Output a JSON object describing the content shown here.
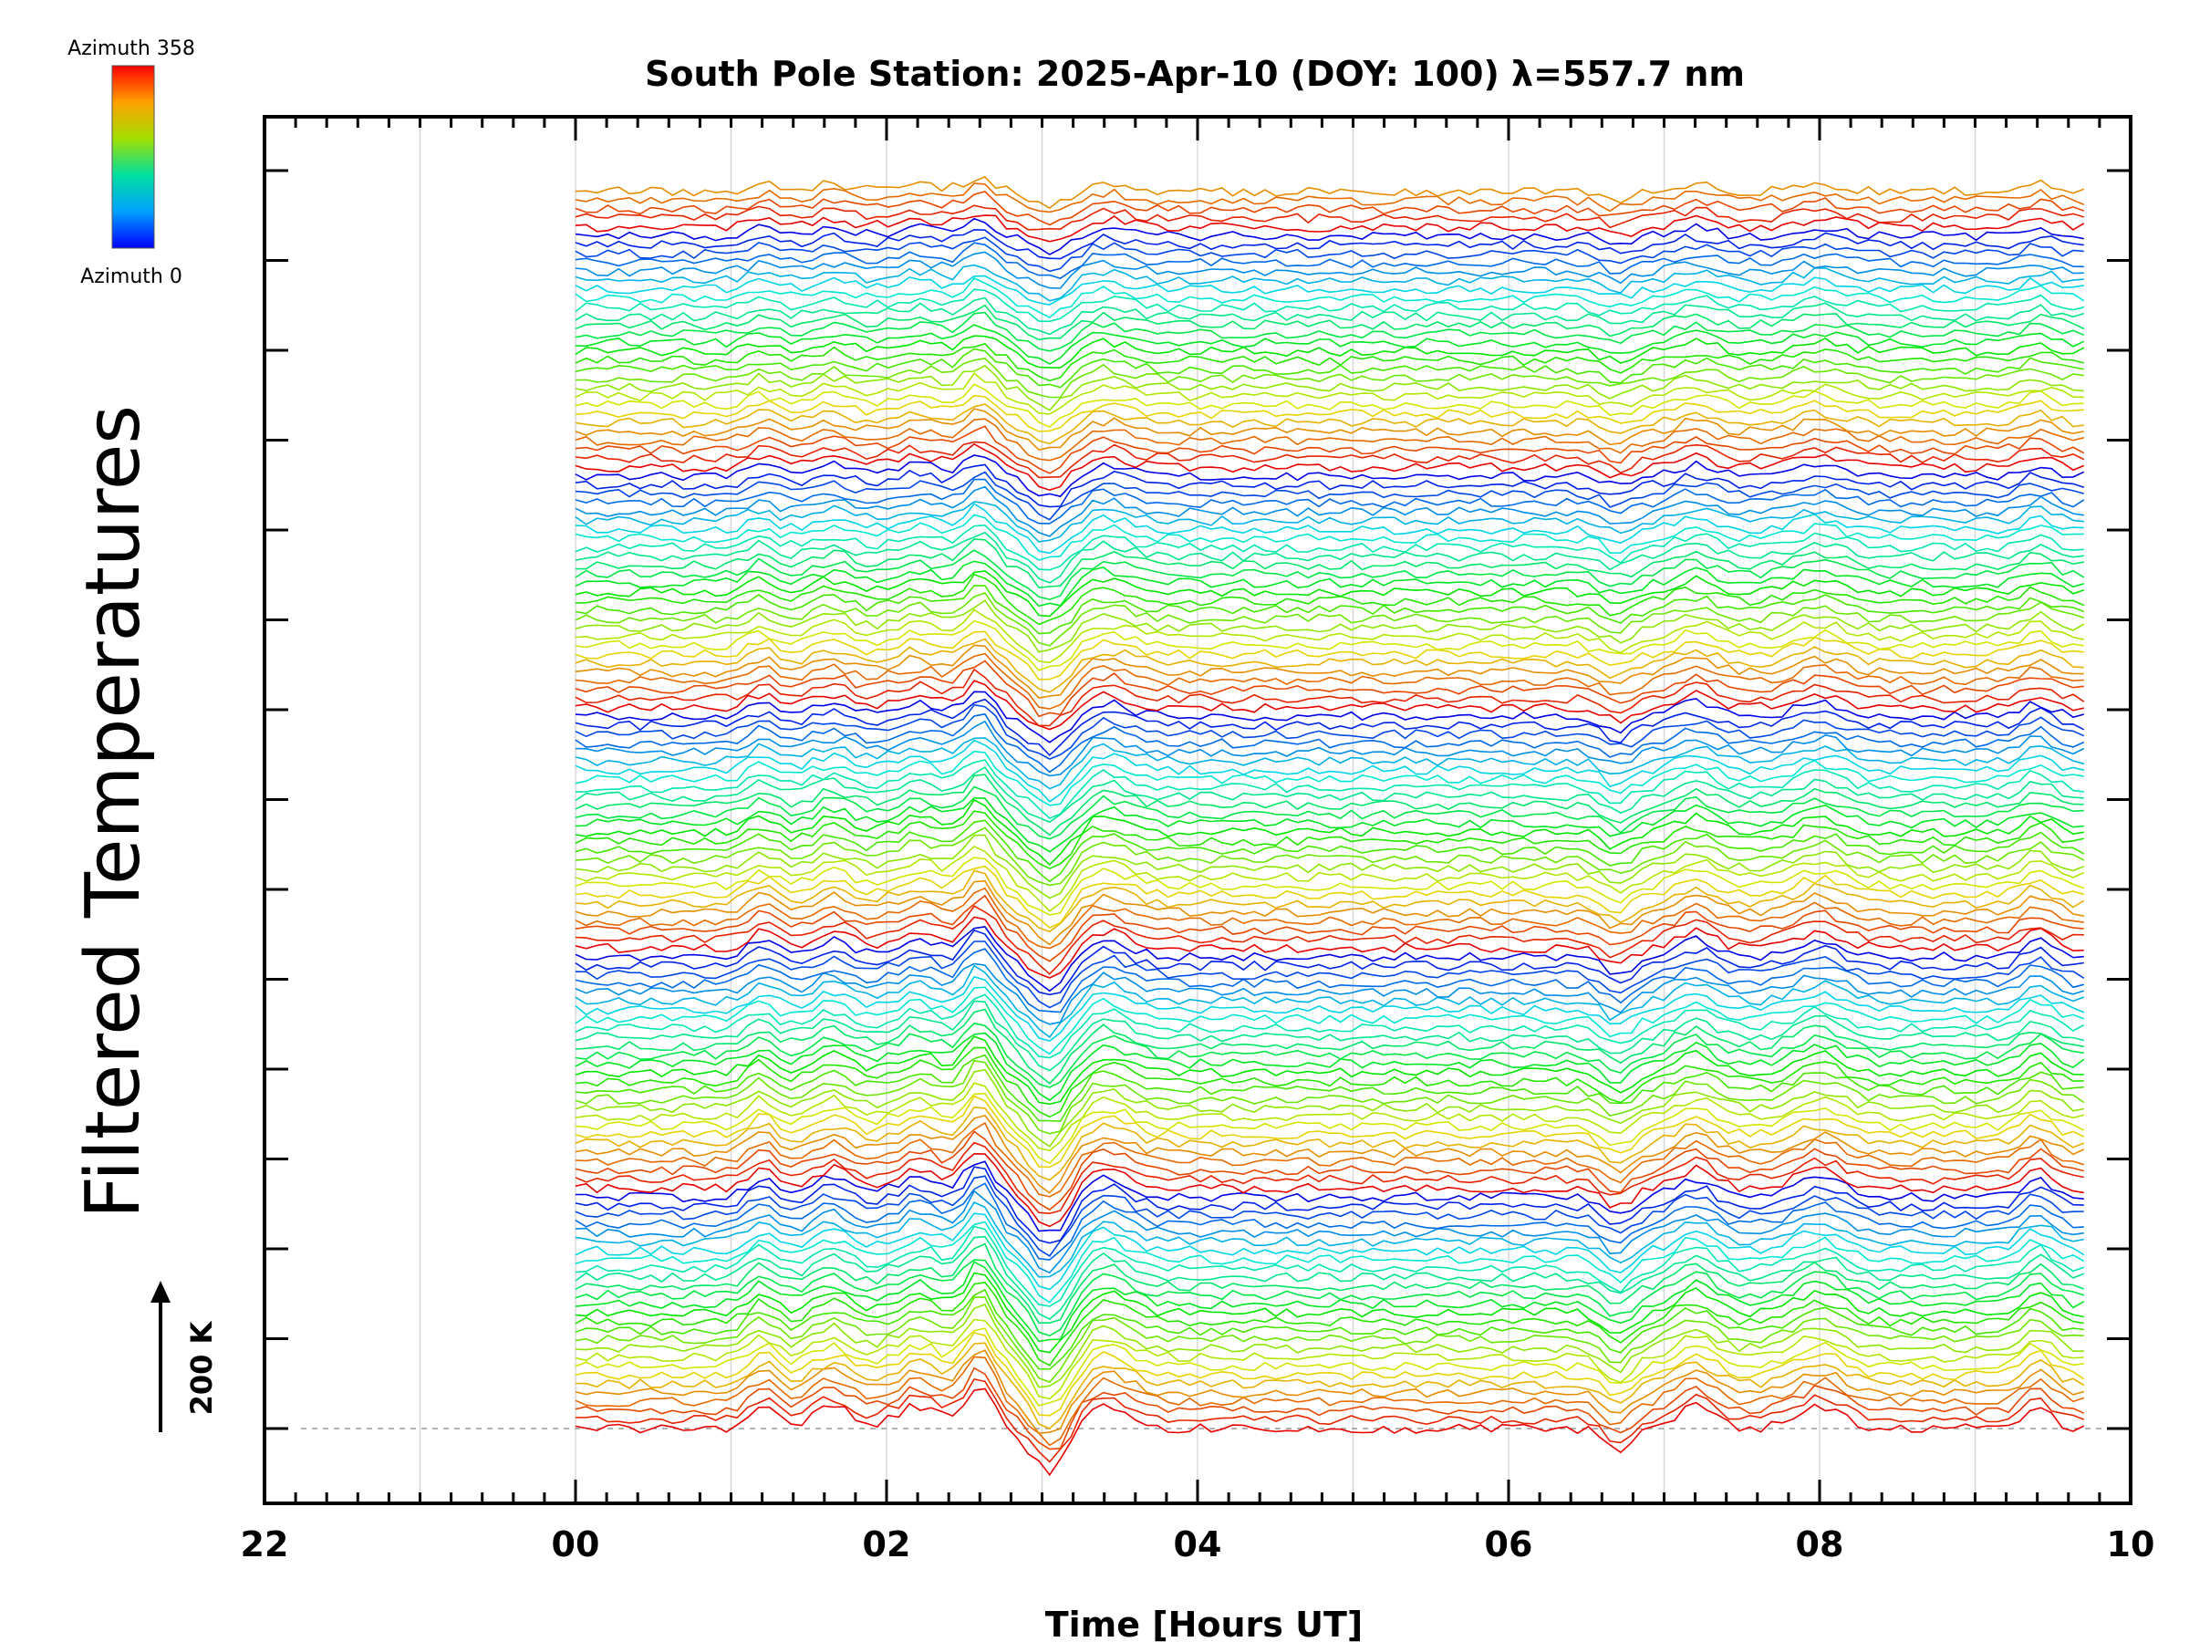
{
  "chart_data": {
    "type": "line",
    "title": "South Pole Station: 2025-Apr-10 (DOY: 100) λ=557.7 nm",
    "xlabel": "Time [Hours UT]",
    "ylabel": "Filtered Temperatures",
    "x_tick_labels": [
      "22",
      "00",
      "02",
      "04",
      "06",
      "08",
      "10"
    ],
    "xlim": [
      -2,
      10
    ],
    "x_data_range": [
      0,
      9.7
    ],
    "series_count": 140,
    "series_colormap": "rainbow (azimuth-coded, blue = 0, red = 358)",
    "series_offset_K": 200,
    "colorbar": {
      "top_label": "Azimuth  358",
      "bottom_label": "Azimuth  0",
      "min": 0,
      "max": 358
    },
    "scale_bar": {
      "label": "200 K",
      "value": 200
    },
    "common_features_hours": [
      1.2,
      1.65,
      2.2,
      2.6,
      3.05,
      3.4,
      6.7,
      7.2,
      8.0,
      9.4
    ],
    "grid": true
  }
}
